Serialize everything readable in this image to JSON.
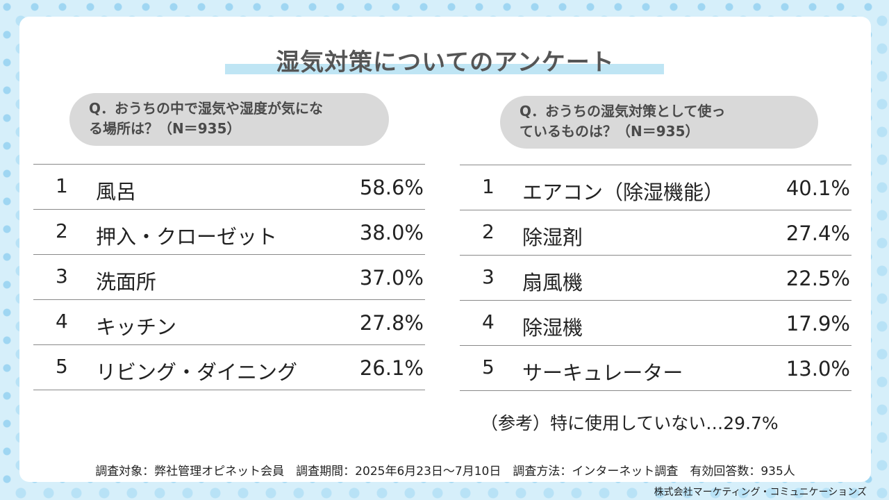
{
  "title": "湿気対策についてのアンケート",
  "colors": {
    "background": "#d6effa",
    "dots": "#9fd6f2",
    "title_band": "#bfe5f4",
    "pill": "#d9d9d9"
  },
  "left": {
    "question": "Q．おうちの中で湿気や湿度が気になる場所は？（N＝935）",
    "question_line1": "Q．おうちの中で湿気や湿度が気にな",
    "question_line2": "る場所は？（N＝935）"
  },
  "right": {
    "question": "Q．おうちの湿気対策として使っているものは？（N＝935）",
    "question_line1": "Q．おうちの湿気対策として使っ",
    "question_line2": "ているものは？（N＝935）",
    "note": "（参考）特に使用していない…29.7%"
  },
  "chart_data": [
    {
      "type": "table",
      "columns": [
        "rank",
        "item",
        "percent"
      ],
      "rows": [
        {
          "rank": "1",
          "item": "風呂",
          "value": 58.6,
          "pct": "58.6%"
        },
        {
          "rank": "2",
          "item": "押入・クローゼット",
          "value": 38.0,
          "pct": "38.0%"
        },
        {
          "rank": "3",
          "item": "洗面所",
          "value": 37.0,
          "pct": "37.0%"
        },
        {
          "rank": "4",
          "item": "キッチン",
          "value": 27.8,
          "pct": "27.8%"
        },
        {
          "rank": "5",
          "item": "リビング・ダイニング",
          "value": 26.1,
          "pct": "26.1%"
        }
      ]
    },
    {
      "type": "table",
      "columns": [
        "rank",
        "item",
        "percent"
      ],
      "rows": [
        {
          "rank": "1",
          "item": "エアコン（除湿機能）",
          "value": 40.1,
          "pct": "40.1%"
        },
        {
          "rank": "2",
          "item": "除湿剤",
          "value": 27.4,
          "pct": "27.4%"
        },
        {
          "rank": "3",
          "item": "扇風機",
          "value": 22.5,
          "pct": "22.5%"
        },
        {
          "rank": "4",
          "item": "除湿機",
          "value": 17.9,
          "pct": "17.9%"
        },
        {
          "rank": "5",
          "item": "サーキュレーター",
          "value": 13.0,
          "pct": "13.0%"
        }
      ]
    }
  ],
  "footer": "調査対象：弊社管理オピネット会員　調査期間：2025年6月23日～7月10日　調査方法：インターネット調査　有効回答数：935人",
  "company": "株式会社マーケティング・コミュニケーションズ"
}
